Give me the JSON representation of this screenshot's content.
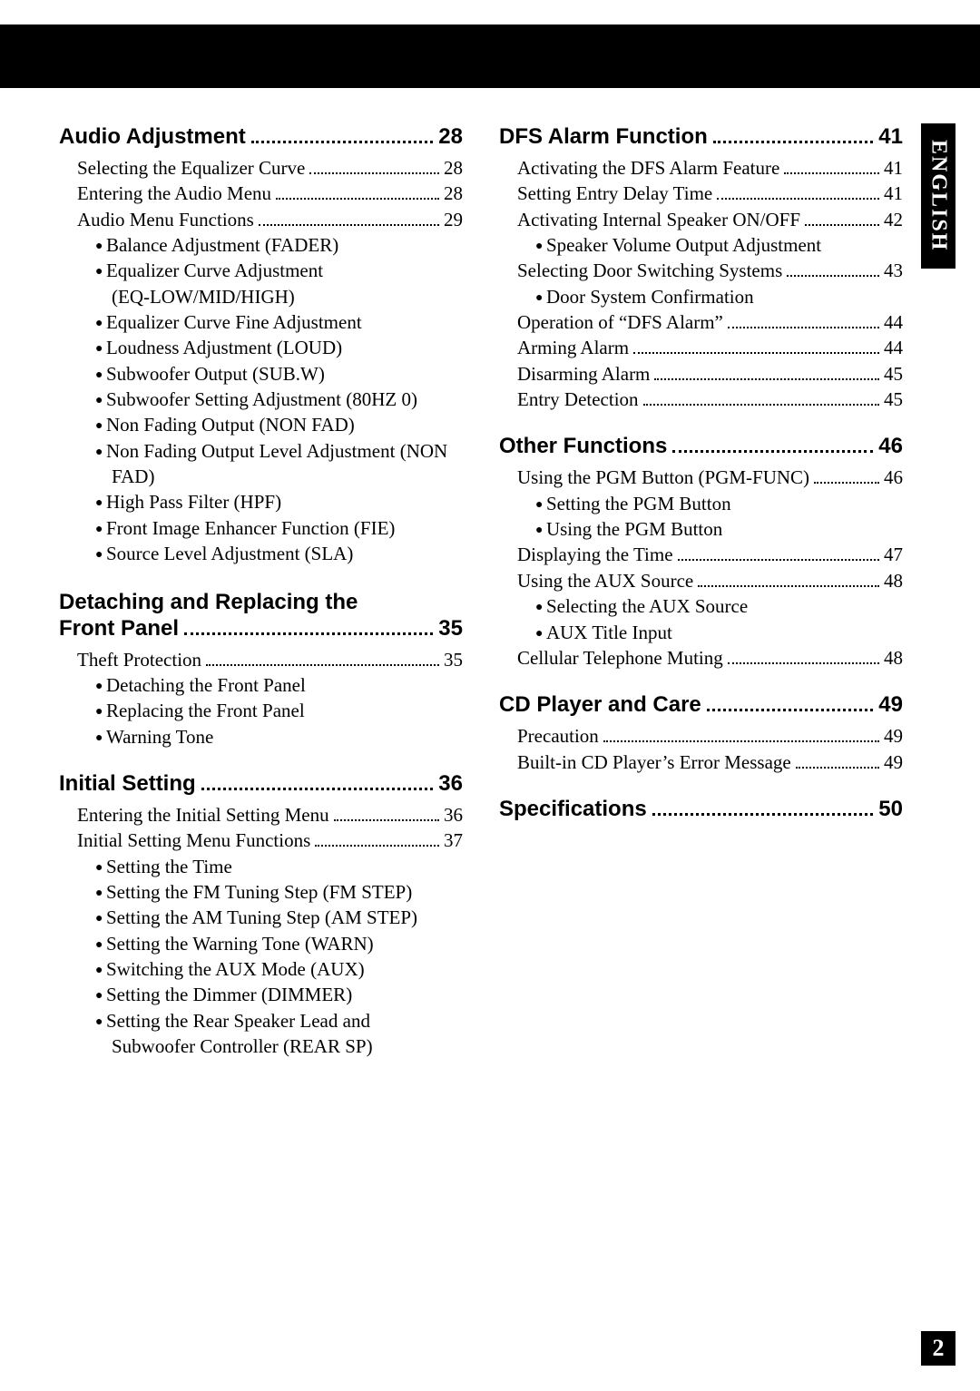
{
  "sideTab": "ENGLISH",
  "pageNumber": "2",
  "left": [
    {
      "title": "Audio Adjustment",
      "page": "28",
      "entries": [
        {
          "t": "Selecting the Equalizer Curve",
          "p": "28"
        },
        {
          "t": "Entering the Audio Menu",
          "p": "28"
        },
        {
          "t": "Audio Menu Functions",
          "p": "29",
          "bullets": [
            "Balance Adjustment (FADER)",
            "Equalizer Curve Adjustment (EQ-LOW/MID/HIGH)",
            "Equalizer Curve Fine Adjustment",
            "Loudness Adjustment (LOUD)",
            "Subwoofer Output (SUB.W)",
            "Subwoofer Setting Adjustment (80HZ 0)",
            "Non Fading Output (NON FAD)",
            "Non Fading Output Level Adjustment (NON FAD)",
            "High Pass Filter (HPF)",
            "Front Image Enhancer Function (FIE)",
            "Source Level Adjustment (SLA)"
          ]
        }
      ]
    },
    {
      "titleLines": [
        "Detaching and Replacing the",
        "Front Panel"
      ],
      "page": "35",
      "entries": [
        {
          "t": "Theft Protection",
          "p": "35",
          "bullets": [
            "Detaching the Front Panel",
            "Replacing the Front Panel",
            "Warning Tone"
          ]
        }
      ]
    },
    {
      "title": "Initial Setting",
      "page": "36",
      "entries": [
        {
          "t": "Entering the Initial Setting Menu",
          "p": "36"
        },
        {
          "t": "Initial Setting Menu Functions",
          "p": "37",
          "bullets": [
            "Setting the Time",
            "Setting the FM Tuning Step (FM STEP)",
            "Setting the AM Tuning Step (AM STEP)",
            "Setting the Warning Tone (WARN)",
            "Switching the AUX Mode (AUX)",
            "Setting the Dimmer (DIMMER)",
            "Setting the Rear Speaker Lead and Subwoofer Controller (REAR SP)"
          ]
        }
      ]
    }
  ],
  "right": [
    {
      "title": "DFS Alarm Function",
      "page": "41",
      "entries": [
        {
          "t": "Activating the DFS Alarm Feature",
          "p": "41"
        },
        {
          "t": "Setting Entry Delay Time",
          "p": "41"
        },
        {
          "t": "Activating Internal Speaker ON/OFF",
          "p": "42",
          "bullets": [
            "Speaker Volume Output Adjustment"
          ]
        },
        {
          "t": "Selecting Door Switching Systems",
          "p": "43",
          "bullets": [
            "Door System Confirmation"
          ]
        },
        {
          "t": "Operation of “DFS Alarm”",
          "p": "44"
        },
        {
          "t": "Arming Alarm",
          "p": "44"
        },
        {
          "t": "Disarming Alarm",
          "p": "45"
        },
        {
          "t": "Entry Detection",
          "p": "45"
        }
      ]
    },
    {
      "title": "Other Functions",
      "page": "46",
      "entries": [
        {
          "t": "Using the PGM Button (PGM-FUNC)",
          "p": "46",
          "bullets": [
            "Setting the PGM Button",
            "Using the PGM Button"
          ]
        },
        {
          "t": "Displaying the Time",
          "p": "47"
        },
        {
          "t": "Using the AUX Source",
          "p": "48",
          "bullets": [
            "Selecting the AUX Source",
            "AUX Title Input"
          ]
        },
        {
          "t": "Cellular Telephone Muting",
          "p": "48"
        }
      ]
    },
    {
      "title": "CD Player and Care",
      "page": "49",
      "entries": [
        {
          "t": "Precaution",
          "p": "49"
        },
        {
          "t": "Built-in CD Player’s Error Message",
          "p": "49"
        }
      ]
    },
    {
      "title": "Specifications",
      "page": "50",
      "entries": []
    }
  ]
}
